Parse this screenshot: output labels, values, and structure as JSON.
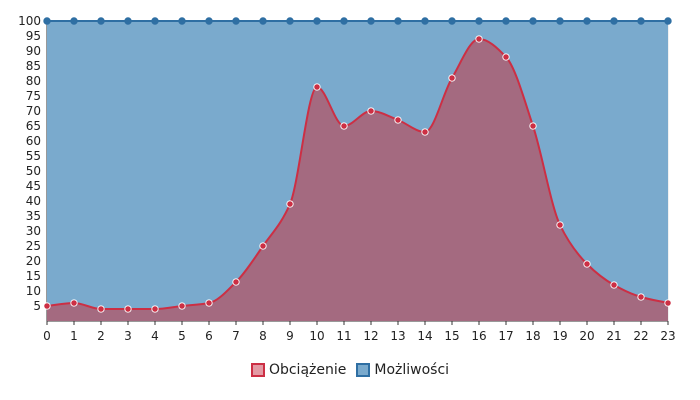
{
  "chart_data": {
    "type": "area",
    "x": [
      0,
      1,
      2,
      3,
      4,
      5,
      6,
      7,
      8,
      9,
      10,
      11,
      12,
      13,
      14,
      15,
      16,
      17,
      18,
      19,
      20,
      21,
      22,
      23
    ],
    "ylim": [
      0,
      100
    ],
    "yticks": [
      5,
      10,
      15,
      20,
      25,
      30,
      35,
      40,
      45,
      50,
      55,
      60,
      65,
      70,
      75,
      80,
      85,
      90,
      95,
      100
    ],
    "grid": true,
    "legend_position": "bottom-center",
    "series": [
      {
        "name": "Możliwości",
        "values": [
          100,
          100,
          100,
          100,
          100,
          100,
          100,
          100,
          100,
          100,
          100,
          100,
          100,
          100,
          100,
          100,
          100,
          100,
          100,
          100,
          100,
          100,
          100,
          100
        ],
        "line_color": "#2f6fa3",
        "fill_color": "#7aaacd"
      },
      {
        "name": "Obciążenie",
        "values": [
          5,
          6,
          4,
          4,
          4,
          5,
          6,
          13,
          25,
          39,
          78,
          65,
          70,
          67,
          63,
          81,
          94,
          88,
          65,
          32,
          19,
          12,
          8,
          6
        ],
        "line_color": "#cc2f44",
        "fill_color": "#a46a80"
      }
    ]
  }
}
